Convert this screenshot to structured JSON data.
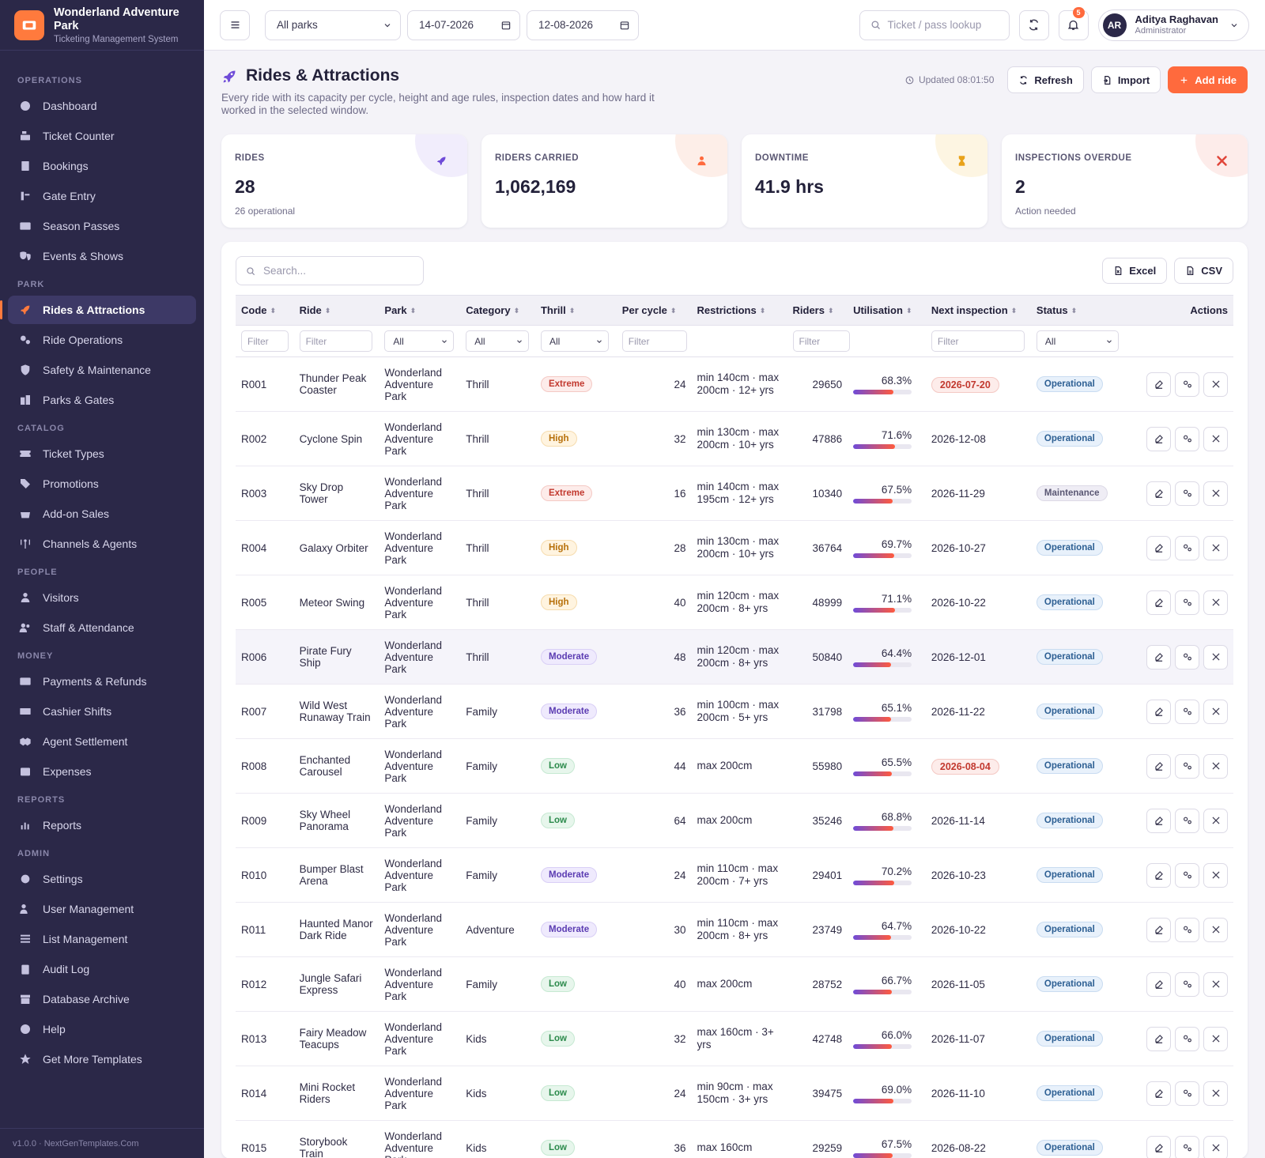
{
  "brand": {
    "name": "Wonderland Adventure Park",
    "subtitle": "Ticketing Management System"
  },
  "sidebar": {
    "sections": [
      {
        "title": "OPERATIONS",
        "items": [
          {
            "label": "Dashboard",
            "icon": "dashboard-icon"
          },
          {
            "label": "Ticket Counter",
            "icon": "cash-register-icon"
          },
          {
            "label": "Bookings",
            "icon": "bookings-icon"
          },
          {
            "label": "Gate Entry",
            "icon": "gate-icon"
          },
          {
            "label": "Season Passes",
            "icon": "id-card-icon"
          },
          {
            "label": "Events & Shows",
            "icon": "masks-icon"
          }
        ]
      },
      {
        "title": "PARK",
        "items": [
          {
            "label": "Rides & Attractions",
            "icon": "rocket-icon",
            "active": true
          },
          {
            "label": "Ride Operations",
            "icon": "gears-icon"
          },
          {
            "label": "Safety & Maintenance",
            "icon": "shield-icon"
          },
          {
            "label": "Parks & Gates",
            "icon": "buildings-icon"
          }
        ]
      },
      {
        "title": "CATALOG",
        "items": [
          {
            "label": "Ticket Types",
            "icon": "ticket-icon"
          },
          {
            "label": "Promotions",
            "icon": "tags-icon"
          },
          {
            "label": "Add-on Sales",
            "icon": "basket-icon"
          },
          {
            "label": "Channels & Agents",
            "icon": "broadcast-icon"
          }
        ]
      },
      {
        "title": "PEOPLE",
        "items": [
          {
            "label": "Visitors",
            "icon": "users-icon"
          },
          {
            "label": "Staff & Attendance",
            "icon": "user-group-icon"
          }
        ]
      },
      {
        "title": "MONEY",
        "items": [
          {
            "label": "Payments & Refunds",
            "icon": "credit-card-icon"
          },
          {
            "label": "Cashier Shifts",
            "icon": "cash-icon"
          },
          {
            "label": "Agent Settlement",
            "icon": "handshake-icon"
          },
          {
            "label": "Expenses",
            "icon": "wallet-icon"
          }
        ]
      },
      {
        "title": "REPORTS",
        "items": [
          {
            "label": "Reports",
            "icon": "chart-icon"
          }
        ]
      },
      {
        "title": "ADMIN",
        "items": [
          {
            "label": "Settings",
            "icon": "gear-icon"
          },
          {
            "label": "User Management",
            "icon": "user-gear-icon"
          },
          {
            "label": "List Management",
            "icon": "list-icon"
          },
          {
            "label": "Audit Log",
            "icon": "clipboard-icon"
          },
          {
            "label": "Database Archive",
            "icon": "archive-icon"
          },
          {
            "label": "Help",
            "icon": "help-icon"
          },
          {
            "label": "Get More Templates",
            "icon": "star-icon"
          }
        ]
      }
    ],
    "footer": "v1.0.0 · NextGenTemplates.Com"
  },
  "topbar": {
    "park_select": "All parks",
    "date_from": "14-07-2026",
    "date_to": "12-08-2026",
    "search_placeholder": "Ticket / pass lookup",
    "notifications": "5",
    "user": {
      "initials": "AR",
      "name": "Aditya Raghavan",
      "role": "Administrator"
    }
  },
  "page": {
    "title": "Rides & Attractions",
    "description": "Every ride with its capacity per cycle, height and age rules, inspection dates and how hard it worked in the selected window.",
    "updated": "Updated 08:01:50",
    "buttons": {
      "refresh": "Refresh",
      "import": "Import",
      "add": "Add ride"
    }
  },
  "kpis": [
    {
      "label": "RIDES",
      "value": "28",
      "sub": "26 operational",
      "icon": "rocket-icon",
      "color": "#6f4bd8",
      "tint": "#f1edfc"
    },
    {
      "label": "RIDERS CARRIED",
      "value": "1,062,169",
      "sub": "",
      "icon": "users-icon",
      "color": "#ff6a3d",
      "tint": "#fdeee8"
    },
    {
      "label": "DOWNTIME",
      "value": "41.9 hrs",
      "sub": "",
      "icon": "hourglass-icon",
      "color": "#e8a21a",
      "tint": "#fdf5e2"
    },
    {
      "label": "INSPECTIONS OVERDUE",
      "value": "2",
      "sub": "Action needed",
      "icon": "tools-icon",
      "color": "#e0453a",
      "tint": "#fdecea"
    }
  ],
  "table": {
    "search_placeholder": "Search...",
    "export": {
      "excel": "Excel",
      "csv": "CSV"
    },
    "columns": [
      "Code",
      "Ride",
      "Park",
      "Category",
      "Thrill",
      "Per cycle",
      "Restrictions",
      "Riders",
      "Utilisation",
      "Next inspection",
      "Status",
      "Actions"
    ],
    "filters": {
      "text": "Filter",
      "all": "All"
    },
    "rows": [
      {
        "code": "R001",
        "ride": "Thunder Peak Coaster",
        "park": "Wonderland Adventure Park",
        "category": "Thrill",
        "thrill": "Extreme",
        "per_cycle": "24",
        "restrictions": "min 140cm · max 200cm · 12+ yrs",
        "riders": "29650",
        "util": "68.3%",
        "util_value": 68.3,
        "inspection": "2026-07-20",
        "inspection_overdue": true,
        "status": "Operational"
      },
      {
        "code": "R002",
        "ride": "Cyclone Spin",
        "park": "Wonderland Adventure Park",
        "category": "Thrill",
        "thrill": "High",
        "per_cycle": "32",
        "restrictions": "min 130cm · max 200cm · 10+ yrs",
        "riders": "47886",
        "util": "71.6%",
        "util_value": 71.6,
        "inspection": "2026-12-08",
        "inspection_overdue": false,
        "status": "Operational"
      },
      {
        "code": "R003",
        "ride": "Sky Drop Tower",
        "park": "Wonderland Adventure Park",
        "category": "Thrill",
        "thrill": "Extreme",
        "per_cycle": "16",
        "restrictions": "min 140cm · max 195cm · 12+ yrs",
        "riders": "10340",
        "util": "67.5%",
        "util_value": 67.5,
        "inspection": "2026-11-29",
        "inspection_overdue": false,
        "status": "Maintenance"
      },
      {
        "code": "R004",
        "ride": "Galaxy Orbiter",
        "park": "Wonderland Adventure Park",
        "category": "Thrill",
        "thrill": "High",
        "per_cycle": "28",
        "restrictions": "min 130cm · max 200cm · 10+ yrs",
        "riders": "36764",
        "util": "69.7%",
        "util_value": 69.7,
        "inspection": "2026-10-27",
        "inspection_overdue": false,
        "status": "Operational"
      },
      {
        "code": "R005",
        "ride": "Meteor Swing",
        "park": "Wonderland Adventure Park",
        "category": "Thrill",
        "thrill": "High",
        "per_cycle": "40",
        "restrictions": "min 120cm · max 200cm · 8+ yrs",
        "riders": "48999",
        "util": "71.1%",
        "util_value": 71.1,
        "inspection": "2026-10-22",
        "inspection_overdue": false,
        "status": "Operational"
      },
      {
        "code": "R006",
        "ride": "Pirate Fury Ship",
        "park": "Wonderland Adventure Park",
        "category": "Thrill",
        "thrill": "Moderate",
        "per_cycle": "48",
        "restrictions": "min 120cm · max 200cm · 8+ yrs",
        "riders": "50840",
        "util": "64.4%",
        "util_value": 64.4,
        "inspection": "2026-12-01",
        "inspection_overdue": false,
        "status": "Operational",
        "highlight": true
      },
      {
        "code": "R007",
        "ride": "Wild West Runaway Train",
        "park": "Wonderland Adventure Park",
        "category": "Family",
        "thrill": "Moderate",
        "per_cycle": "36",
        "restrictions": "min 100cm · max 200cm · 5+ yrs",
        "riders": "31798",
        "util": "65.1%",
        "util_value": 65.1,
        "inspection": "2026-11-22",
        "inspection_overdue": false,
        "status": "Operational"
      },
      {
        "code": "R008",
        "ride": "Enchanted Carousel",
        "park": "Wonderland Adventure Park",
        "category": "Family",
        "thrill": "Low",
        "per_cycle": "44",
        "restrictions": "max 200cm",
        "riders": "55980",
        "util": "65.5%",
        "util_value": 65.5,
        "inspection": "2026-08-04",
        "inspection_overdue": true,
        "status": "Operational"
      },
      {
        "code": "R009",
        "ride": "Sky Wheel Panorama",
        "park": "Wonderland Adventure Park",
        "category": "Family",
        "thrill": "Low",
        "per_cycle": "64",
        "restrictions": "max 200cm",
        "riders": "35246",
        "util": "68.8%",
        "util_value": 68.8,
        "inspection": "2026-11-14",
        "inspection_overdue": false,
        "status": "Operational"
      },
      {
        "code": "R010",
        "ride": "Bumper Blast Arena",
        "park": "Wonderland Adventure Park",
        "category": "Family",
        "thrill": "Moderate",
        "per_cycle": "24",
        "restrictions": "min 110cm · max 200cm · 7+ yrs",
        "riders": "29401",
        "util": "70.2%",
        "util_value": 70.2,
        "inspection": "2026-10-23",
        "inspection_overdue": false,
        "status": "Operational"
      },
      {
        "code": "R011",
        "ride": "Haunted Manor Dark Ride",
        "park": "Wonderland Adventure Park",
        "category": "Adventure",
        "thrill": "Moderate",
        "per_cycle": "30",
        "restrictions": "min 110cm · max 200cm · 8+ yrs",
        "riders": "23749",
        "util": "64.7%",
        "util_value": 64.7,
        "inspection": "2026-10-22",
        "inspection_overdue": false,
        "status": "Operational"
      },
      {
        "code": "R012",
        "ride": "Jungle Safari Express",
        "park": "Wonderland Adventure Park",
        "category": "Family",
        "thrill": "Low",
        "per_cycle": "40",
        "restrictions": "max 200cm",
        "riders": "28752",
        "util": "66.7%",
        "util_value": 66.7,
        "inspection": "2026-11-05",
        "inspection_overdue": false,
        "status": "Operational"
      },
      {
        "code": "R013",
        "ride": "Fairy Meadow Teacups",
        "park": "Wonderland Adventure Park",
        "category": "Kids",
        "thrill": "Low",
        "per_cycle": "32",
        "restrictions": "max 160cm · 3+ yrs",
        "riders": "42748",
        "util": "66.0%",
        "util_value": 66.0,
        "inspection": "2026-11-07",
        "inspection_overdue": false,
        "status": "Operational"
      },
      {
        "code": "R014",
        "ride": "Mini Rocket Riders",
        "park": "Wonderland Adventure Park",
        "category": "Kids",
        "thrill": "Low",
        "per_cycle": "24",
        "restrictions": "min 90cm · max 150cm · 3+ yrs",
        "riders": "39475",
        "util": "69.0%",
        "util_value": 69.0,
        "inspection": "2026-11-10",
        "inspection_overdue": false,
        "status": "Operational"
      },
      {
        "code": "R015",
        "ride": "Storybook Train",
        "park": "Wonderland Adventure Park",
        "category": "Kids",
        "thrill": "Low",
        "per_cycle": "36",
        "restrictions": "max 160cm",
        "riders": "29259",
        "util": "67.5%",
        "util_value": 67.5,
        "inspection": "2026-08-22",
        "inspection_overdue": false,
        "status": "Operational"
      }
    ]
  }
}
